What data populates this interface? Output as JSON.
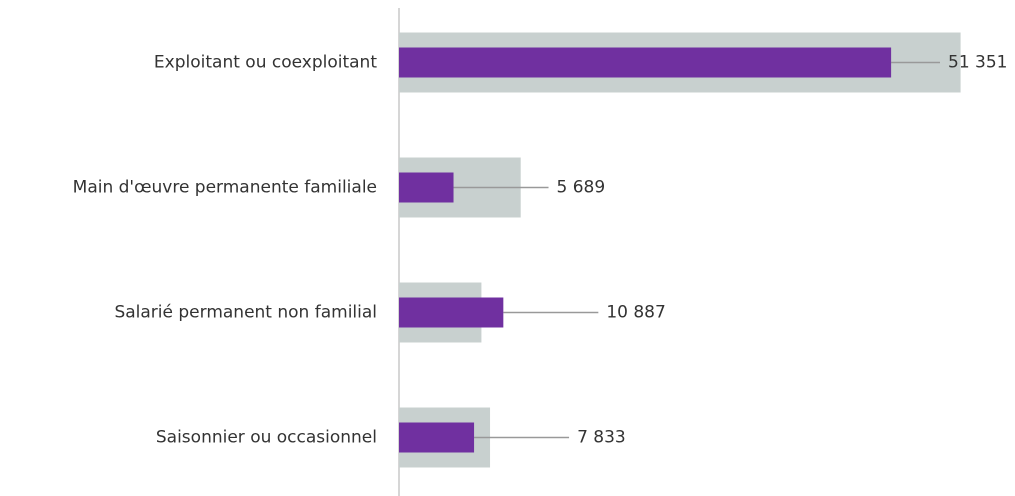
{
  "chart_data": {
    "type": "hbar",
    "categories": [
      "Exploitant ou coexploitant",
      "Main d'œuvre permanente familiale",
      "Salarié permanent non familial",
      "Saisonnier ou occasionnel"
    ],
    "series": [
      {
        "color": "#c8d0cf",
        "values": [
          58600,
          12700,
          8600,
          9500
        ]
      },
      {
        "color": "#7030a0",
        "values": [
          51351,
          5689,
          10887,
          7833
        ],
        "value_labels": [
          "51 351",
          "5 689",
          "10 887",
          "7 833"
        ]
      }
    ],
    "xlim": [
      0,
      60000
    ]
  }
}
